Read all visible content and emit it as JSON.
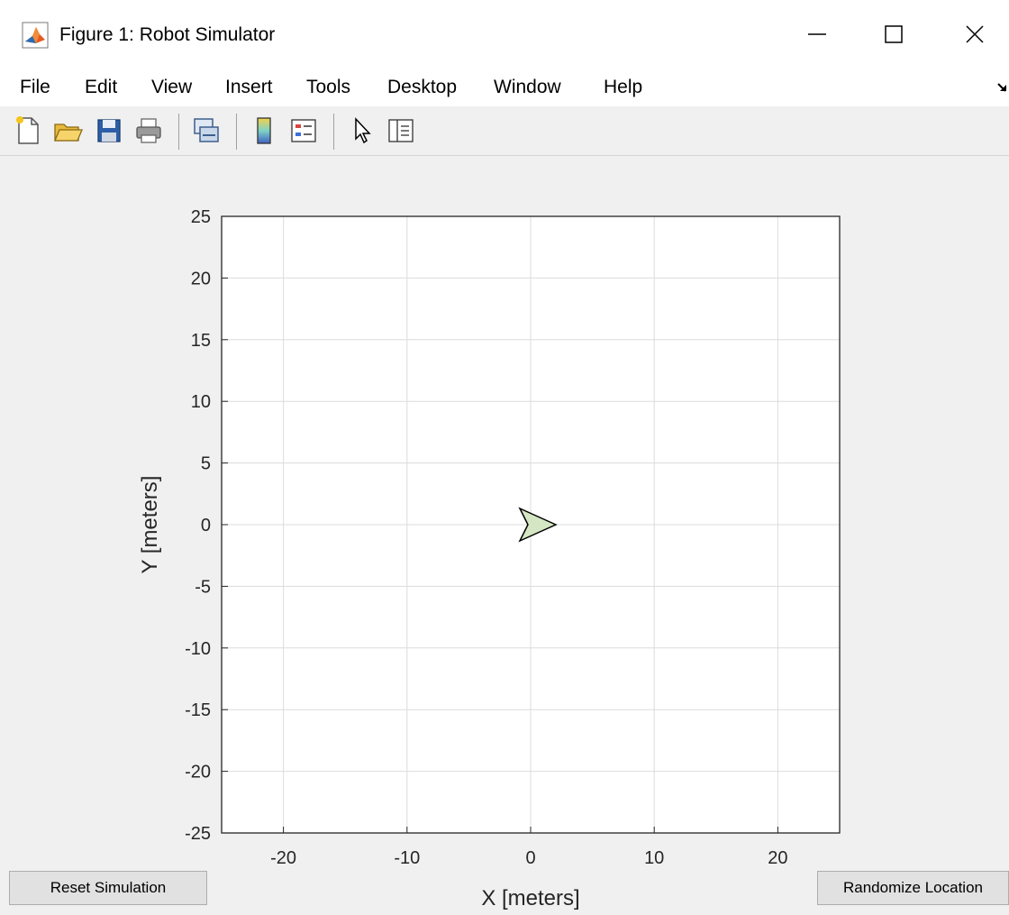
{
  "window": {
    "title": "Figure 1: Robot Simulator",
    "app_icon": "matlab-icon",
    "controls": [
      "minimize-icon",
      "maximize-icon",
      "close-icon"
    ]
  },
  "menu": {
    "items": [
      "File",
      "Edit",
      "View",
      "Insert",
      "Tools",
      "Desktop",
      "Window",
      "Help"
    ]
  },
  "toolbar": {
    "icons": [
      "new-figure-icon",
      "open-file-icon",
      "save-icon",
      "print-icon",
      "link-plot-icon",
      "colorbar-icon",
      "legend-icon",
      "edit-plot-pointer-icon",
      "property-inspector-icon"
    ]
  },
  "buttons": {
    "reset": "Reset Simulation",
    "randomize": "Randomize Location"
  },
  "chart_data": {
    "type": "scatter",
    "title": "",
    "xlabel": "X [meters]",
    "ylabel": "Y [meters]",
    "xlim": [
      -25,
      25
    ],
    "ylim": [
      -25,
      25
    ],
    "xticks": [
      -20,
      -10,
      0,
      10,
      20
    ],
    "yticks": [
      25,
      20,
      15,
      10,
      5,
      0,
      -5,
      -10,
      -15,
      -20,
      -25
    ],
    "grid": true,
    "robot": {
      "x": 0,
      "y": 0,
      "heading_deg": 0,
      "marker": "arrowhead",
      "color": "#d4e6c3"
    }
  }
}
